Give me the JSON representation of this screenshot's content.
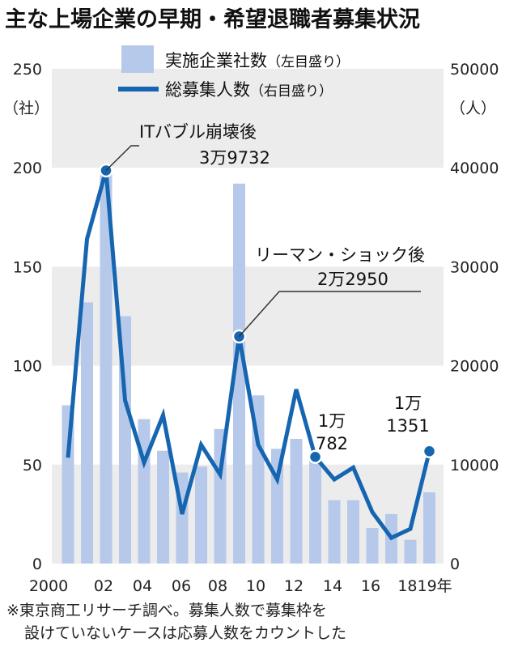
{
  "colors": {
    "bar": "#b7c9ea",
    "line": "#1565b0",
    "band": "#ececec"
  },
  "chart_data": {
    "type": "bar+line",
    "title": "主な上場企業の早期・希望退職者募集状況",
    "left_unit": "（社）",
    "right_unit": "（人）",
    "left_ylim": [
      0,
      250
    ],
    "right_ylim": [
      0,
      50000
    ],
    "left_ticks": [
      0,
      50,
      100,
      150,
      200,
      250
    ],
    "right_ticks": [
      0,
      10000,
      20000,
      30000,
      40000,
      50000
    ],
    "x_tick_labels": [
      "2000",
      "02",
      "04",
      "06",
      "08",
      "10",
      "12",
      "14",
      "16",
      "1819年"
    ],
    "x": [
      2000,
      2001,
      2002,
      2003,
      2004,
      2005,
      2006,
      2007,
      2008,
      2009,
      2010,
      2011,
      2012,
      2013,
      2014,
      2015,
      2016,
      2017,
      2018,
      2019
    ],
    "series": [
      {
        "name": "実施企業社数",
        "legend_note": "（左目盛り）",
        "type": "bar",
        "axis": "left",
        "values": [
          80,
          132,
          200,
          125,
          73,
          57,
          46,
          49,
          68,
          192,
          85,
          58,
          63,
          54,
          32,
          32,
          18,
          25,
          12,
          36
        ]
      },
      {
        "name": "総募集人数",
        "legend_note": "（右目盛り）",
        "type": "line",
        "axis": "right",
        "values": [
          10700,
          32800,
          39732,
          16500,
          10200,
          15000,
          5000,
          12000,
          9000,
          22950,
          12000,
          8500,
          17600,
          10782,
          8500,
          9700,
          5200,
          2600,
          3500,
          11351
        ]
      }
    ],
    "annotations": [
      {
        "lines": [
          "ITバブル崩壊後",
          "3万9732"
        ]
      },
      {
        "lines": [
          "リーマン・ショック後",
          "2万2950"
        ]
      },
      {
        "lines": [
          "1万",
          "782"
        ]
      },
      {
        "lines": [
          "1万",
          "1351"
        ]
      }
    ],
    "note_lines": [
      "※東京商工リサーチ調べ。募集人数で募集枠を",
      "設けていないケースは応募人数をカウントした"
    ]
  }
}
